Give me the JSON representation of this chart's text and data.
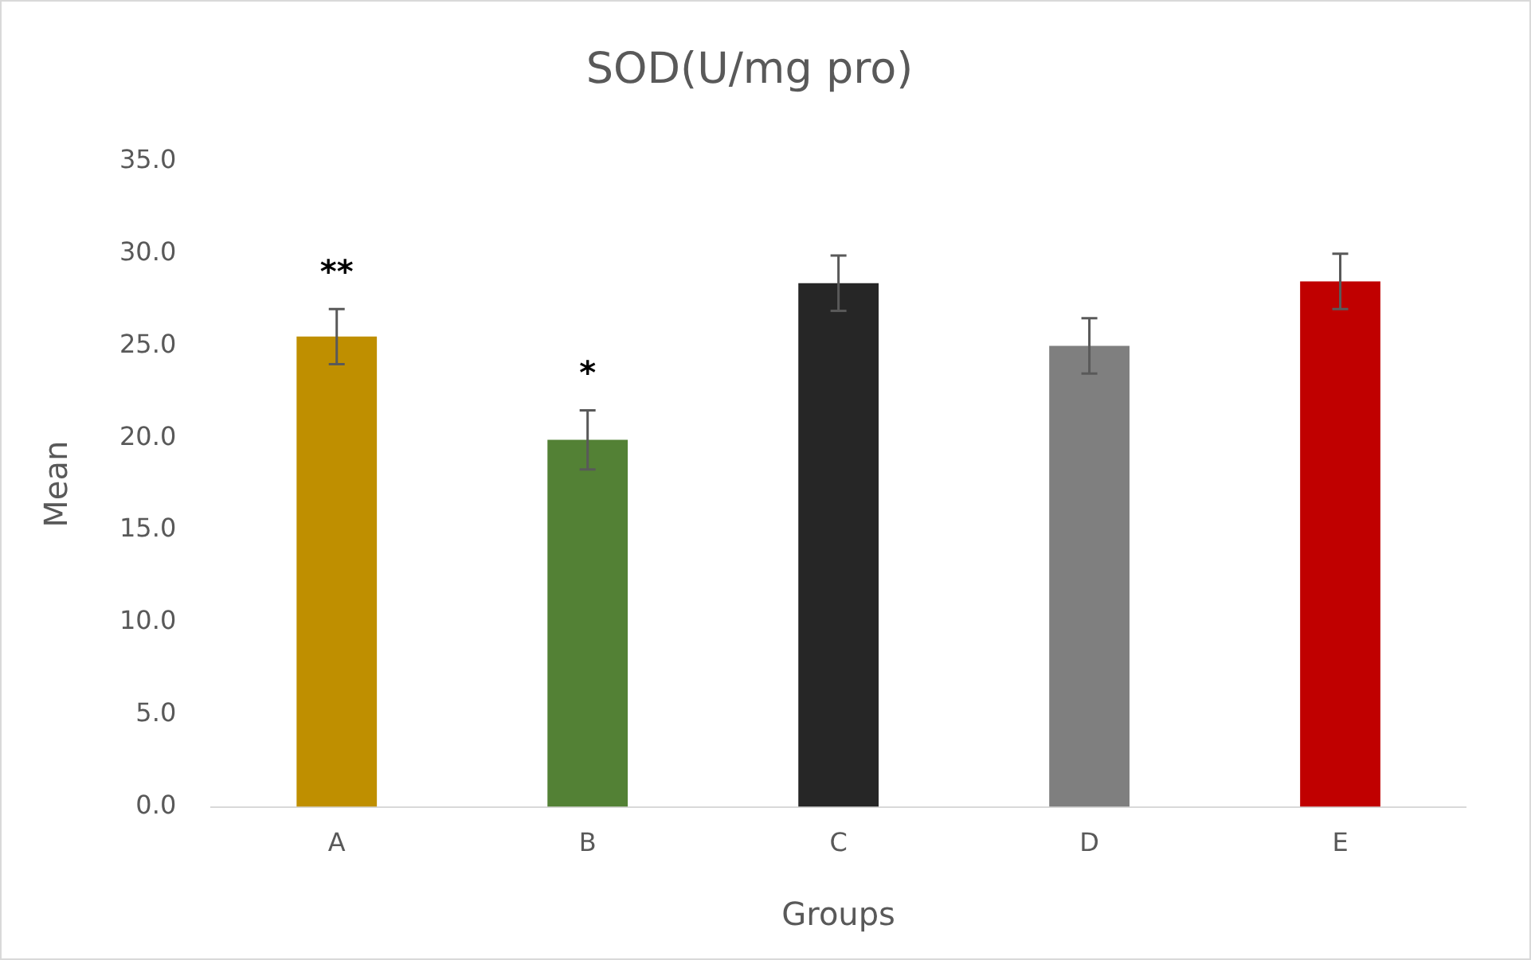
{
  "chart_data": {
    "type": "bar",
    "title": "SOD(U/mg pro)",
    "xlabel": "Groups",
    "ylabel": "Mean",
    "categories": [
      "A",
      "B",
      "C",
      "D",
      "E"
    ],
    "values": [
      25.5,
      19.9,
      28.4,
      25.0,
      28.5
    ],
    "colors": [
      "#bf8f00",
      "#538135",
      "#262626",
      "#7f7f7f",
      "#c00000"
    ],
    "errors": [
      1.5,
      1.6,
      1.5,
      1.5,
      1.5
    ],
    "ylim": [
      0,
      35
    ],
    "yticks": [
      {
        "value": 0,
        "label": "0.0"
      },
      {
        "value": 5,
        "label": "5.0"
      },
      {
        "value": 10,
        "label": "10.0"
      },
      {
        "value": 15,
        "label": "15.0"
      },
      {
        "value": 20,
        "label": "20.0"
      },
      {
        "value": 25,
        "label": "25.0"
      },
      {
        "value": 30,
        "label": "30.0"
      },
      {
        "value": 35,
        "label": "35.0"
      }
    ],
    "grid": false,
    "legend": false,
    "annotations": [
      "**",
      "*"
    ]
  }
}
